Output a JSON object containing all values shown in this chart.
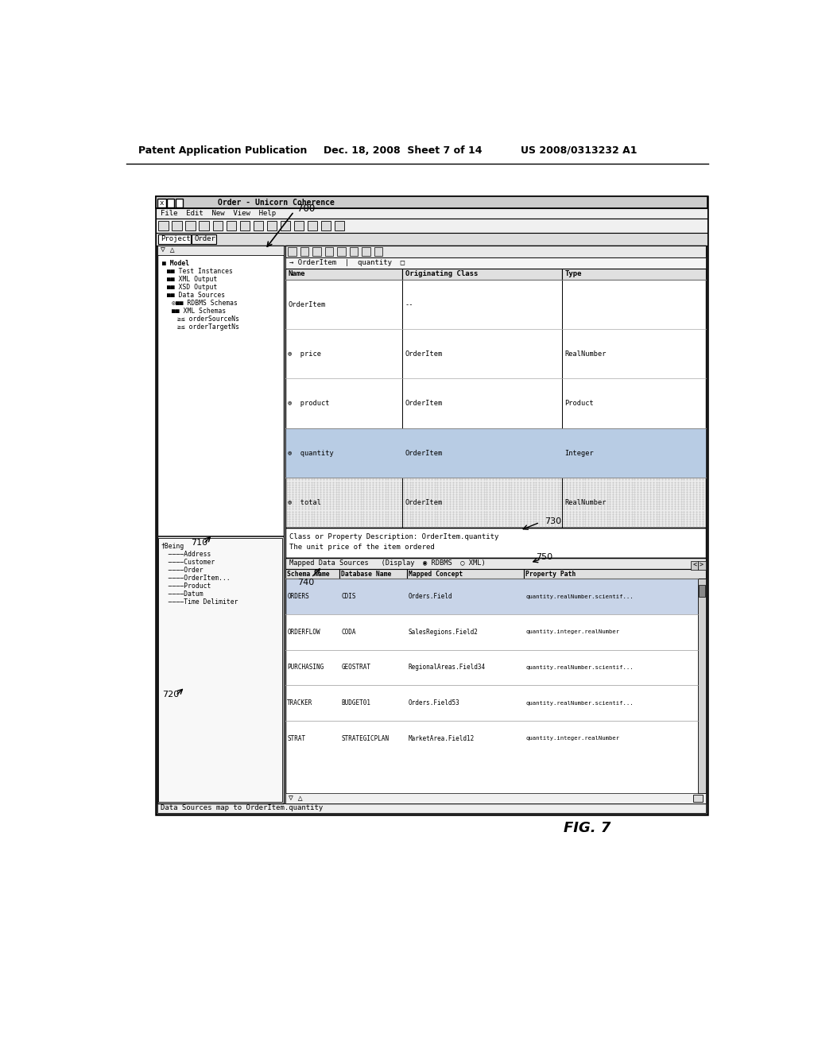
{
  "bg_color": "#ffffff",
  "header_text": "Patent Application Publication",
  "header_date": "Dec. 18, 2008  Sheet 7 of 14",
  "header_patent": "US 2008/0313232 A1",
  "fig_label": "FIG. 7",
  "ref_700": "700",
  "ref_710": "710",
  "ref_720": "720",
  "ref_730": "730",
  "ref_740": "740",
  "ref_750": "750",
  "title_bar": "Order - Unicorn Coherence",
  "menu_bar": "File  Edit  New  View  Help",
  "tab_bar": "Project  Order",
  "nav_bar": "→ OrderItem  |  quantity",
  "tree_items": [
    "■ Model",
    "■■ Test Instances",
    "■■ XML Output",
    "■■ XSD Output",
    "■■ Data Sources",
    "⊙■■ RDBMS Schemas",
    "■■ XML Schemas",
    "≥≤ orderSourceNs",
    "≥≤ orderTargetNs"
  ],
  "being_items": [
    "†Being",
    "  ––––Address",
    "  ––––Customer",
    "  ––––Order",
    "  ––––OrderItem...",
    "  ––––Product",
    "  ––––Datum",
    "  ––––Time Delimiter"
  ],
  "table_headers": [
    "Name",
    "Originating Class",
    "Type"
  ],
  "table_rows": [
    [
      "OrderItem",
      "--",
      ""
    ],
    [
      "⊚  price",
      "OrderItem",
      "RealNumber"
    ],
    [
      "⊚  product",
      "OrderItem",
      "Product"
    ],
    [
      "⊚  quantity",
      "OrderItem",
      "Integer"
    ],
    [
      "⊚  total",
      "OrderItem",
      "RealNumber"
    ]
  ],
  "desc_line1": "Class or Property Description: OrderItem.quantity",
  "desc_line2": "The unit price of the item ordered",
  "map_header": "Mapped Data Sources   (Display  ◉ RDBMS  ○ XML)",
  "map_col_headers": [
    "Schema Name",
    "Database Name",
    "Mapped Concept",
    "Property Path"
  ],
  "map_rows": [
    [
      "ORDERS",
      "CDIS",
      "Orders.Field",
      "quantity.realNumber.scientif..."
    ],
    [
      "ORDERFLOW",
      "CODA",
      "SalesRegions.Field2",
      "quantity.integer.realNumber"
    ],
    [
      "PURCHASING",
      "GEOSTRAT",
      "RegionalAreas.Field34",
      "quantity.realNumber.scientif..."
    ],
    [
      "TRACKER",
      "BUDGET01",
      "Orders.Field53",
      "quantity.realNumber.scientif..."
    ],
    [
      "STRAT",
      "STRATEGICPLAN",
      "MarketArea.Field12",
      "quantity.integer.realNumber"
    ]
  ],
  "status_bar": "Data Sources map to OrderItem.quantity"
}
